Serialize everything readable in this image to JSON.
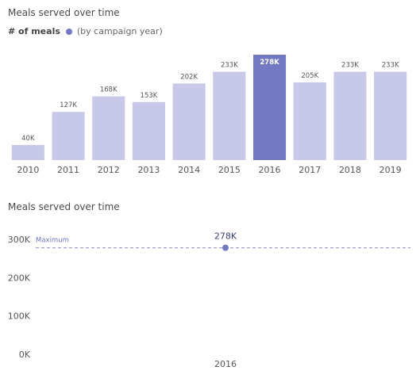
{
  "chart_data": [
    {
      "type": "bar",
      "title": "Meals served over time",
      "legend_title": "# of meals",
      "categories": [
        "2010",
        "2011",
        "2012",
        "2013",
        "2014",
        "2015",
        "2016",
        "2017",
        "2018",
        "2019"
      ],
      "series": [
        {
          "name": "(by campaign year)",
          "values": [
            40000,
            127000,
            168000,
            153000,
            202000,
            233000,
            278000,
            205000,
            233000,
            233000
          ],
          "labels": [
            "40K",
            "127K",
            "168K",
            "153K",
            "202K",
            "233K",
            "278K",
            "205K",
            "233K",
            "233K"
          ]
        }
      ],
      "highlight": "2016",
      "ylim": [
        0,
        278000
      ],
      "colors": {
        "bar": "#c8c9e8",
        "highlight": "#7479c3"
      }
    },
    {
      "type": "line",
      "title": "Meals served over time",
      "categories": [
        "2016"
      ],
      "values": [
        278000
      ],
      "point_label": "278K",
      "y_ticks": [
        "0K",
        "100K",
        "200K",
        "300K"
      ],
      "ylim": [
        0,
        300000
      ],
      "reference_line": {
        "label": "Maximum",
        "value": 278000
      },
      "colors": {
        "point": "#7479c3",
        "reference": "#9da1d8"
      }
    }
  ]
}
